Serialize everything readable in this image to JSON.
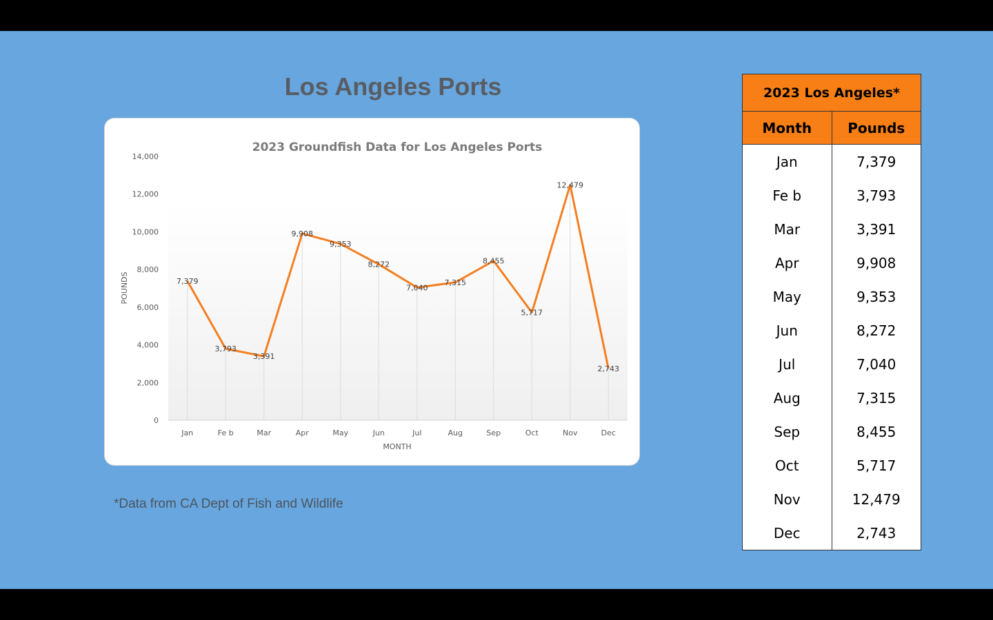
{
  "slide": {
    "title": "Los Angeles Ports",
    "footnote": "*Data from CA Dept of Fish and Wildlife"
  },
  "table": {
    "caption": "2023 Los Angeles*",
    "headers": [
      "Month",
      "Pounds"
    ],
    "rows": [
      [
        "Jan",
        "7,379"
      ],
      [
        "Fe b",
        "3,793"
      ],
      [
        "Mar",
        "3,391"
      ],
      [
        "Apr",
        "9,908"
      ],
      [
        "May",
        "9,353"
      ],
      [
        "Jun",
        "8,272"
      ],
      [
        "Jul",
        "7,040"
      ],
      [
        "Aug",
        "7,315"
      ],
      [
        "Sep",
        "8,455"
      ],
      [
        "Oct",
        "5,717"
      ],
      [
        "Nov",
        "12,479"
      ],
      [
        "Dec",
        "2,743"
      ]
    ]
  },
  "colors": {
    "line": "#f47e20",
    "slide_background": "#67a6de",
    "table_header": "#f77f16"
  },
  "chart_data": {
    "type": "line",
    "title": "2023 Groundfish Data for Los Angeles Ports",
    "xlabel": "MONTH",
    "ylabel": "POUNDS",
    "categories": [
      "Jan",
      "Fe b",
      "Mar",
      "Apr",
      "May",
      "Jun",
      "Jul",
      "Aug",
      "Sep",
      "Oct",
      "Nov",
      "Dec"
    ],
    "series": [
      {
        "values": [
          7379,
          3793,
          3391,
          9908,
          9353,
          8272,
          7040,
          7315,
          8455,
          5717,
          12479,
          2743
        ]
      }
    ],
    "data_labels": [
      "7,379",
      "3,793",
      "3,391",
      "9,908",
      "9,353",
      "8,272",
      "7,040",
      "7,315",
      "8,455",
      "5,717",
      "12,479",
      "2,743"
    ],
    "ylim": [
      0,
      14000
    ],
    "yticks": [
      0,
      2000,
      4000,
      6000,
      8000,
      10000,
      12000,
      14000
    ],
    "ytick_labels": [
      "0",
      "2,000",
      "4,000",
      "6,000",
      "8,000",
      "10,000",
      "12,000",
      "14,000"
    ],
    "grid": false,
    "drop_lines": true
  }
}
